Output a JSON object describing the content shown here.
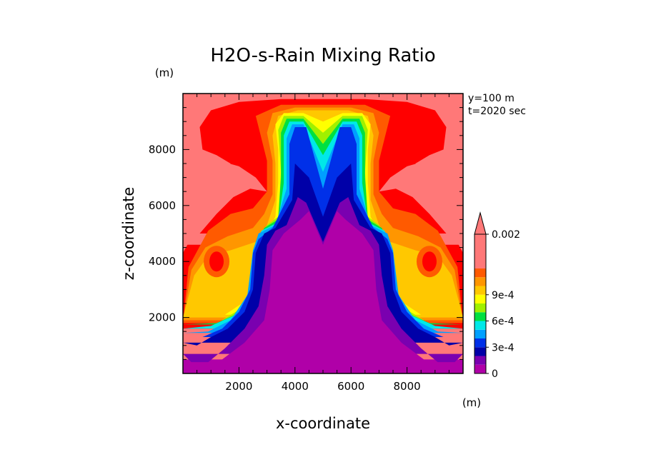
{
  "chart_data": {
    "type": "heatmap",
    "title": "H2O-s-Rain Mixing Ratio",
    "xlabel": "x-coordinate",
    "ylabel": "z-coordinate",
    "x_unit": "(m)",
    "y_unit": "(m)",
    "xlim": [
      0,
      10000
    ],
    "ylim": [
      0,
      10000
    ],
    "xticks": [
      "2000",
      "4000",
      "6000",
      "8000"
    ],
    "yticks": [
      "2000",
      "4000",
      "6000",
      "8000"
    ],
    "annotations": [
      "y=100 m",
      "t=2020 sec"
    ],
    "colorbar": {
      "labels": [
        {
          "value": 0,
          "text": "0"
        },
        {
          "value": 0.0003,
          "text": "3e-4"
        },
        {
          "value": 0.0006,
          "text": "6e-4"
        },
        {
          "value": 0.0009,
          "text": "9e-4"
        },
        {
          "value": 0.002,
          "text": "0.002"
        }
      ],
      "colors": [
        "#b000a8",
        "#7a00b0",
        "#0000a8",
        "#0030e8",
        "#00a0ff",
        "#00e8e8",
        "#00e040",
        "#a0f000",
        "#ffff00",
        "#ffc800",
        "#ff9600",
        "#ff5a00",
        "#ff0000",
        "#ff7878"
      ]
    },
    "field_description_levels": {
      "background": "#b000a8",
      "min": 0,
      "max": 0.002
    }
  }
}
